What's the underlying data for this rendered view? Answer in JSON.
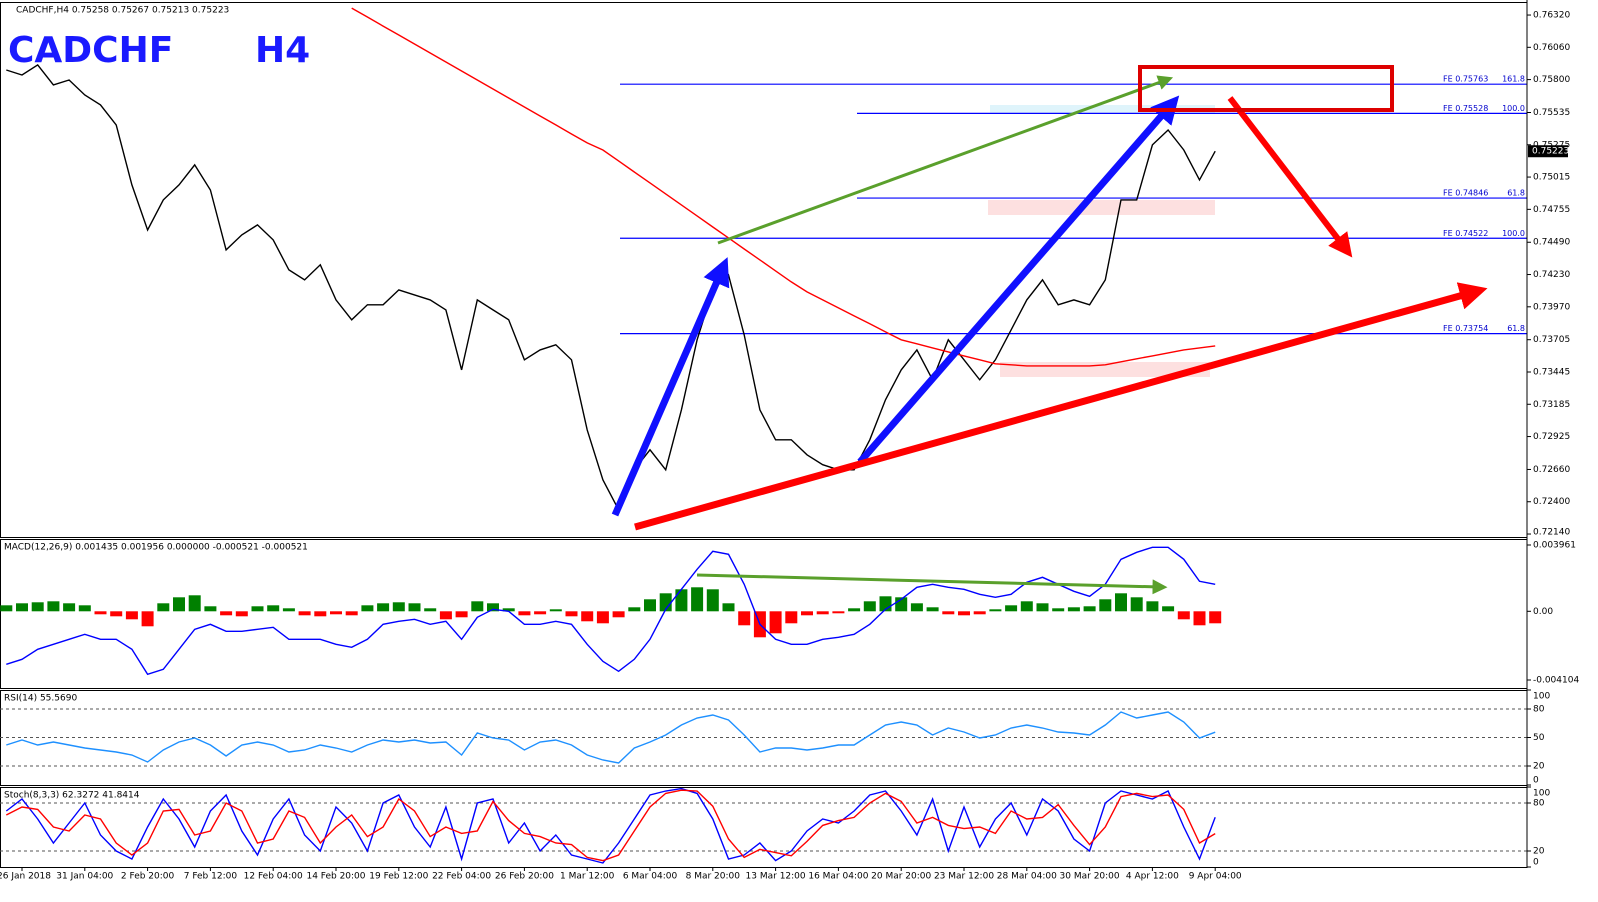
{
  "chart_data": [
    {
      "type": "line",
      "label": "CADCHF,H4  0.75258 0.75267 0.75213 0.75223",
      "title": "CADCHF",
      "timeframe": "H4",
      "categories": [
        null,
        "26 Jan 2018",
        null,
        null,
        null,
        "31 Jan 04:00",
        null,
        null,
        null,
        "2 Feb 20:00",
        null,
        null,
        null,
        "7 Feb 12:00",
        null,
        null,
        null,
        "12 Feb 04:00",
        null,
        null,
        null,
        "14 Feb 20:00",
        null,
        null,
        null,
        "19 Feb 12:00",
        null,
        null,
        null,
        "22 Feb 04:00",
        null,
        null,
        null,
        "26 Feb 20:00",
        null,
        null,
        null,
        "1 Mar 12:00",
        null,
        null,
        null,
        "6 Mar 04:00",
        null,
        null,
        null,
        "8 Mar 20:00",
        null,
        null,
        null,
        "13 Mar 12:00",
        null,
        null,
        null,
        "16 Mar 04:00",
        null,
        null,
        null,
        "20 Mar 20:00",
        null,
        null,
        null,
        "23 Mar 12:00",
        null,
        null,
        null,
        "28 Mar 04:00",
        null,
        null,
        null,
        "30 Mar 20:00",
        null,
        null,
        null,
        "4 Apr 12:00",
        null,
        null,
        null,
        "9 Apr 04:00"
      ],
      "series": [
        {
          "color": "#000000",
          "values": [
            0.75877,
            0.75837,
            0.75918,
            0.75757,
            0.75797,
            0.75676,
            0.75596,
            0.75435,
            0.74952,
            0.74589,
            0.74831,
            0.74952,
            0.75113,
            0.74911,
            0.74428,
            0.74549,
            0.7463,
            0.74509,
            0.74267,
            0.74187,
            0.74308,
            0.74026,
            0.73865,
            0.73986,
            0.73986,
            0.74106,
            0.74066,
            0.74026,
            0.73945,
            0.73462,
            0.74026,
            0.73945,
            0.73865,
            0.73543,
            0.73623,
            0.73664,
            0.73543,
            0.72979,
            0.72577,
            0.72335,
            0.72657,
            0.72818,
            0.72657,
            0.7314,
            0.73704,
            0.74106,
            0.74227,
            0.73744,
            0.7314,
            0.72899,
            0.72899,
            0.72778,
            0.72698,
            0.72657,
            0.72657,
            0.72899,
            0.73221,
            0.73462,
            0.73623,
            0.73382,
            0.73704,
            0.73543,
            0.73382,
            0.73543,
            0.73784,
            0.74026,
            0.74187,
            0.73986,
            0.74026,
            0.73986,
            0.74187,
            0.74831,
            0.74831,
            0.75274,
            0.75394,
            0.75233,
            0.74992,
            0.75223
          ]
        },
        {
          "color": "#ff0000",
          "values": [
            null,
            null,
            null,
            null,
            null,
            null,
            null,
            null,
            null,
            null,
            null,
            null,
            null,
            null,
            null,
            null,
            null,
            null,
            null,
            null,
            null,
            null,
            0.76376,
            0.76304,
            0.76231,
            0.76159,
            0.76087,
            0.76014,
            0.75942,
            0.75869,
            0.75797,
            0.75724,
            0.75652,
            0.75579,
            0.75507,
            0.75435,
            0.75362,
            0.7529,
            0.75233,
            0.75145,
            0.75056,
            0.74968,
            0.74879,
            0.74791,
            0.74702,
            0.74613,
            0.74525,
            0.74436,
            0.74348,
            0.74259,
            0.74171,
            0.7409,
            0.74026,
            0.73961,
            0.73897,
            0.73833,
            0.73768,
            0.73704,
            0.73672,
            0.73639,
            0.73607,
            0.73575,
            0.73543,
            0.73511,
            0.73503,
            0.73494,
            0.73494,
            0.73494,
            0.73494,
            0.73494,
            0.73503,
            0.73527,
            0.73551,
            0.73575,
            0.73599,
            0.73623,
            0.73639,
            0.73655
          ]
        }
      ],
      "ylim": [
        0.72116,
        0.76425
      ],
      "yticks": [
        {
          "value": 0.7632,
          "label": "0.76320"
        },
        {
          "value": 0.7606,
          "label": "0.76060"
        },
        {
          "value": 0.758,
          "label": "0.75800"
        },
        0.75535,
        0.75275,
        0.75015,
        0.74755,
        {
          "value": 0.7449,
          "label": "0.74490"
        },
        {
          "value": 0.7423,
          "label": "0.74230"
        },
        {
          "value": 0.7397,
          "label": "0.73970"
        },
        0.73705,
        0.73445,
        0.73185,
        0.72925,
        {
          "value": 0.7266,
          "label": "0.72660"
        },
        {
          "value": 0.724,
          "label": "0.72400"
        },
        {
          "value": 0.7214,
          "label": "0.72140"
        }
      ],
      "grid": false,
      "last_price": 0.75223,
      "fib_levels": [
        {
          "value": 0.75763,
          "label": "FE 0.75763",
          "ratio": "161.8"
        },
        {
          "value": 0.75528,
          "label": "FE 0.75528",
          "ratio": "100.0"
        },
        {
          "value": 0.74846,
          "label": "FE 0.74846",
          "ratio": "61.8"
        },
        {
          "value": 0.74522,
          "label": "FE 0.74522",
          "ratio": "100.0"
        },
        {
          "value": 0.73754,
          "label": "FE 0.73754",
          "ratio": "61.8"
        }
      ]
    },
    {
      "type": "bar",
      "label": "MACD(12,26,9) 0.001435 0.001956 0.000000 -0.000521 -0.000521",
      "values": [
        0.000358,
        0.000478,
        0.000538,
        0.000597,
        0.000478,
        0.000358,
        -0.000179,
        -0.000299,
        -0.000478,
        -0.000896,
        0.000478,
        0.000836,
        0.000956,
        0.000299,
        -0.000239,
        -0.000299,
        0.000299,
        0.000358,
        0.000179,
        -0.000239,
        -0.000299,
        -0.000179,
        -0.000239,
        0.000358,
        0.000478,
        0.000538,
        0.000478,
        0.000179,
        -0.000478,
        -0.000358,
        0.000597,
        0.000478,
        0.000179,
        -0.000239,
        -0.000179,
        0.000119,
        -0.000299,
        -0.000597,
        -0.000717,
        -0.000358,
        0.000239,
        0.000717,
        0.001075,
        0.001314,
        0.001434,
        0.001314,
        0.000478,
        -0.000836,
        -0.001553,
        -0.001314,
        -0.000717,
        -0.000239,
        -0.000179,
        -0.000119,
        0.000179,
        0.000597,
        0.000896,
        0.000836,
        0.000478,
        0.000239,
        -0.000179,
        -0.000239,
        -0.000179,
        0.000119,
        0.000358,
        0.000597,
        0.000478,
        0.000179,
        0.000239,
        0.000299,
        0.000717,
        0.001075,
        0.000836,
        0.000597,
        0.000299,
        -0.000478,
        -0.000836,
        -0.000717
      ],
      "color_up": "#008000",
      "color_down": "#ff0000",
      "series": [
        {
          "color": "#0000ff",
          "values": [
            -0.003166,
            -0.002868,
            -0.00227,
            -0.001971,
            -0.001673,
            -0.001374,
            -0.001673,
            -0.001673,
            -0.00227,
            -0.003764,
            -0.003465,
            -0.00227,
            -0.001075,
            -0.000777,
            -0.001195,
            -0.001195,
            -0.001075,
            -0.000956,
            -0.001673,
            -0.001673,
            -0.001673,
            -0.001971,
            -0.002151,
            -0.001673,
            -0.000777,
            -0.000597,
            -0.000478,
            -0.000777,
            -0.000597,
            -0.001673,
            -0.000358,
            0.000119,
            0,
            -0.000777,
            -0.000777,
            -0.000597,
            -0.000777,
            -0.001971,
            -0.002987,
            -0.003584,
            -0.002868,
            -0.001673,
            0.000119,
            0.001314,
            0.002509,
            0.003584,
            0.003405,
            0.001613,
            -0.000777,
            -0.001673,
            -0.001971,
            -0.001971,
            -0.001673,
            -0.001553,
            -0.001374,
            -0.000777,
            0.000119,
            0.000717,
            0.001434,
            0.001613,
            0.001434,
            0.001314,
            0.001016,
            0.000836,
            0.001016,
            0.001732,
            0.002031,
            0.001613,
            0.001195,
            0.000896,
            0.001613,
            0.003106,
            0.003525,
            0.003823,
            0.003823,
            0.003106,
            0.001792,
            0.001613
          ]
        }
      ],
      "ylim": [
        -0.004582,
        0.004319
      ],
      "yticks": [
        0.003961,
        {
          "value": 0,
          "label": "0.00"
        },
        -0.004104
      ],
      "grid": false
    },
    {
      "type": "line",
      "label": "RSI(14) 55.5690",
      "series": [
        {
          "color": "#1e90ff",
          "values": [
            42.1,
            47.4,
            42.1,
            45.3,
            42.1,
            38.9,
            36.8,
            34.7,
            31.6,
            24.2,
            36.8,
            45.3,
            49.5,
            42.1,
            30.5,
            42.1,
            45.3,
            42.1,
            34.7,
            36.8,
            42.1,
            38.9,
            34.7,
            42.1,
            47.4,
            45.3,
            47.4,
            44.2,
            45.3,
            31.6,
            54.7,
            49.5,
            47.4,
            36.8,
            45.3,
            47.4,
            42.1,
            31.6,
            26.3,
            23.2,
            38.9,
            45.3,
            52.6,
            63.2,
            70.5,
            73.7,
            68.4,
            52.6,
            34.7,
            38.9,
            38.9,
            36.8,
            38.9,
            42.1,
            42.1,
            52.6,
            63.2,
            66.3,
            63.2,
            52.6,
            60,
            55.8,
            49.5,
            52.6,
            60,
            63.2,
            60,
            55.8,
            54.7,
            52.6,
            63.2,
            76.8,
            70.5,
            73.7,
            76.8,
            66.3,
            49.5,
            55.6
          ]
        }
      ],
      "ylim": [
        0,
        100
      ],
      "yticks": [
        100,
        80,
        50,
        20,
        0
      ],
      "grid": true
    },
    {
      "type": "line",
      "label": "Stoch(8,3,3) 62.3272 41.8414",
      "series": [
        {
          "color": "#0000ff",
          "values": [
            70,
            85,
            60,
            30,
            55,
            80,
            40,
            20,
            10,
            50,
            85,
            60,
            25,
            70,
            90,
            45,
            15,
            60,
            85,
            40,
            20,
            75,
            55,
            20,
            80,
            90,
            50,
            25,
            75,
            10,
            80,
            85,
            30,
            55,
            20,
            40,
            15,
            10,
            5,
            30,
            60,
            90,
            95,
            98,
            92,
            60,
            10,
            15,
            30,
            8,
            20,
            45,
            60,
            55,
            70,
            90,
            95,
            70,
            40,
            85,
            20,
            75,
            25,
            60,
            80,
            40,
            85,
            70,
            35,
            20,
            80,
            95,
            90,
            85,
            95,
            50,
            10,
            62.3
          ]
        },
        {
          "color": "#ff0000",
          "values": [
            65,
            75,
            72,
            50,
            45,
            65,
            60,
            30,
            15,
            30,
            70,
            72,
            40,
            45,
            80,
            70,
            30,
            35,
            70,
            62,
            30,
            50,
            65,
            38,
            50,
            85,
            70,
            38,
            50,
            42,
            45,
            82,
            58,
            42,
            38,
            30,
            28,
            12,
            8,
            15,
            45,
            75,
            92,
            96,
            95,
            76,
            35,
            12,
            22,
            18,
            14,
            32,
            52,
            58,
            62,
            80,
            92,
            82,
            55,
            62,
            52,
            48,
            50,
            42,
            70,
            60,
            62,
            78,
            52,
            28,
            50,
            88,
            92,
            88,
            90,
            72,
            30,
            41.8
          ]
        }
      ],
      "ylim": [
        0,
        100
      ],
      "yticks": [
        100,
        80,
        20,
        0
      ],
      "grid": true
    }
  ]
}
